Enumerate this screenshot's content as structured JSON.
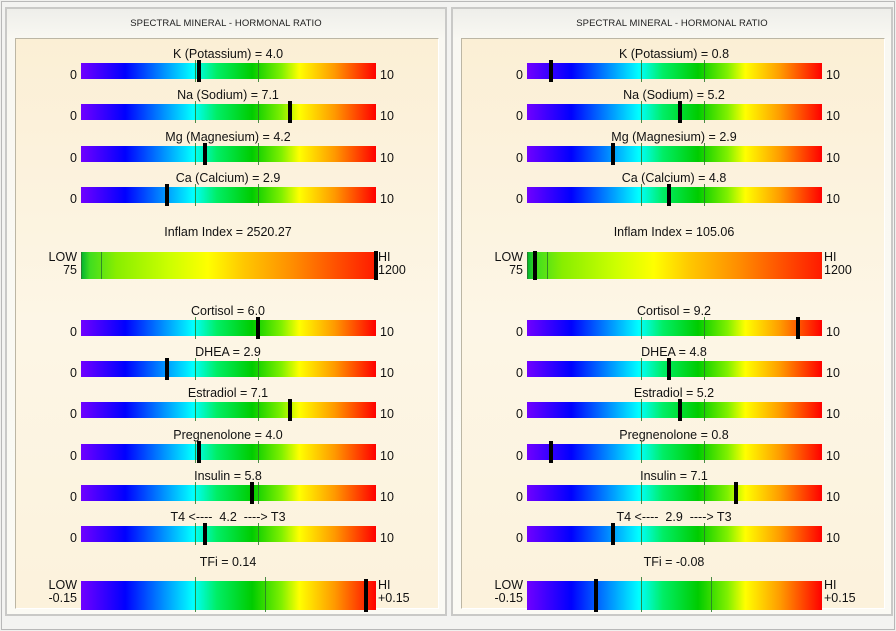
{
  "panels": [
    {
      "title": "SPECTRAL MINERAL - HORMONAL RATIO",
      "minerals": [
        {
          "label": "K (Potassium) = 4.0",
          "value": 4.0,
          "min": "0",
          "max": "10"
        },
        {
          "label": "Na (Sodium) = 7.1",
          "value": 7.1,
          "min": "0",
          "max": "10"
        },
        {
          "label": "Mg (Magnesium) = 4.2",
          "value": 4.2,
          "min": "0",
          "max": "10"
        },
        {
          "label": "Ca (Calcium) = 2.9",
          "value": 2.9,
          "min": "0",
          "max": "10"
        }
      ],
      "inflam": {
        "label": "Inflam Index = 2520.27",
        "value": 2520.27,
        "low_label": "LOW",
        "low_value": "75",
        "hi_label": "HI",
        "hi_value": "1200"
      },
      "hormones": [
        {
          "label": "Cortisol = 6.0",
          "value": 6.0,
          "min": "0",
          "max": "10"
        },
        {
          "label": "DHEA = 2.9",
          "value": 2.9,
          "min": "0",
          "max": "10"
        },
        {
          "label": "Estradiol = 7.1",
          "value": 7.1,
          "min": "0",
          "max": "10"
        },
        {
          "label": "Pregnenolone = 4.0",
          "value": 4.0,
          "min": "0",
          "max": "10"
        },
        {
          "label": "Insulin = 5.8",
          "value": 5.8,
          "min": "0",
          "max": "10"
        },
        {
          "label": "T4 <----  4.2  ----> T3",
          "value": 4.2,
          "min": "0",
          "max": "10"
        }
      ],
      "tfi": {
        "label": "TFi = 0.14",
        "value": 0.14,
        "low_label": "LOW",
        "low_value": "-0.15",
        "hi_label": "HI",
        "hi_value": "+0.15"
      }
    },
    {
      "title": "SPECTRAL MINERAL - HORMONAL RATIO",
      "minerals": [
        {
          "label": "K (Potassium) = 0.8",
          "value": 0.8,
          "min": "0",
          "max": "10"
        },
        {
          "label": "Na (Sodium) = 5.2",
          "value": 5.2,
          "min": "0",
          "max": "10"
        },
        {
          "label": "Mg (Magnesium) = 2.9",
          "value": 2.9,
          "min": "0",
          "max": "10"
        },
        {
          "label": "Ca (Calcium) = 4.8",
          "value": 4.8,
          "min": "0",
          "max": "10"
        }
      ],
      "inflam": {
        "label": "Inflam Index = 105.06",
        "value": 105.06,
        "low_label": "LOW",
        "low_value": "75",
        "hi_label": "HI",
        "hi_value": "1200"
      },
      "hormones": [
        {
          "label": "Cortisol = 9.2",
          "value": 9.2,
          "min": "0",
          "max": "10"
        },
        {
          "label": "DHEA = 4.8",
          "value": 4.8,
          "min": "0",
          "max": "10"
        },
        {
          "label": "Estradiol = 5.2",
          "value": 5.2,
          "min": "0",
          "max": "10"
        },
        {
          "label": "Pregnenolone = 0.8",
          "value": 0.8,
          "min": "0",
          "max": "10"
        },
        {
          "label": "Insulin = 7.1",
          "value": 7.1,
          "min": "0",
          "max": "10"
        },
        {
          "label": "T4 <----  2.9  ----> T3",
          "value": 2.9,
          "min": "0",
          "max": "10"
        }
      ],
      "tfi": {
        "label": "TFi = -0.08",
        "value": -0.08,
        "low_label": "LOW",
        "low_value": "-0.15",
        "hi_label": "HI",
        "hi_value": "+0.15"
      }
    }
  ],
  "colors": {
    "marker": "#000000",
    "panel_bg": "#fcf2dc",
    "tick": "#2a7a2a"
  }
}
